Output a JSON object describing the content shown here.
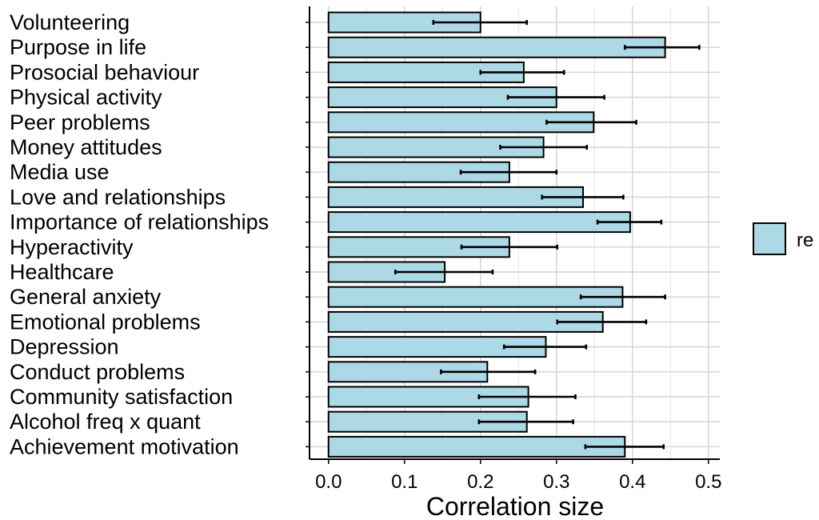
{
  "chart_data": {
    "type": "bar",
    "orientation": "horizontal",
    "categories": [
      "Volunteering",
      "Purpose in life",
      "Prosocial behaviour",
      "Physical activity",
      "Peer problems",
      "Money attitudes",
      "Media use",
      "Love and relationships",
      "Importance of relationships",
      "Hyperactivity",
      "Healthcare",
      "General anxiety",
      "Emotional problems",
      "Depression",
      "Conduct problems",
      "Community satisfaction",
      "Alcohol freq x quant",
      "Achievement motivation"
    ],
    "series": [
      {
        "name": "re",
        "color": "#add8e6",
        "values": [
          0.2,
          0.443,
          0.257,
          0.3,
          0.349,
          0.283,
          0.238,
          0.335,
          0.397,
          0.238,
          0.153,
          0.387,
          0.361,
          0.286,
          0.209,
          0.263,
          0.261,
          0.39
        ],
        "error_low": [
          0.138,
          0.39,
          0.2,
          0.236,
          0.287,
          0.226,
          0.174,
          0.281,
          0.354,
          0.175,
          0.088,
          0.332,
          0.301,
          0.231,
          0.148,
          0.198,
          0.198,
          0.338
        ],
        "error_high": [
          0.261,
          0.488,
          0.31,
          0.363,
          0.405,
          0.34,
          0.3,
          0.388,
          0.438,
          0.301,
          0.216,
          0.443,
          0.418,
          0.339,
          0.272,
          0.325,
          0.322,
          0.441
        ]
      }
    ],
    "xlabel": "Correlation size",
    "ylabel": "",
    "xlim": [
      -0.025,
      0.515
    ],
    "xticks": [
      0.0,
      0.1,
      0.2,
      0.3,
      0.4,
      0.5
    ],
    "xtick_labels": [
      "0.0",
      "0.1",
      "0.2",
      "0.3",
      "0.4",
      "0.5"
    ],
    "grid": true,
    "legend_position": "right"
  }
}
